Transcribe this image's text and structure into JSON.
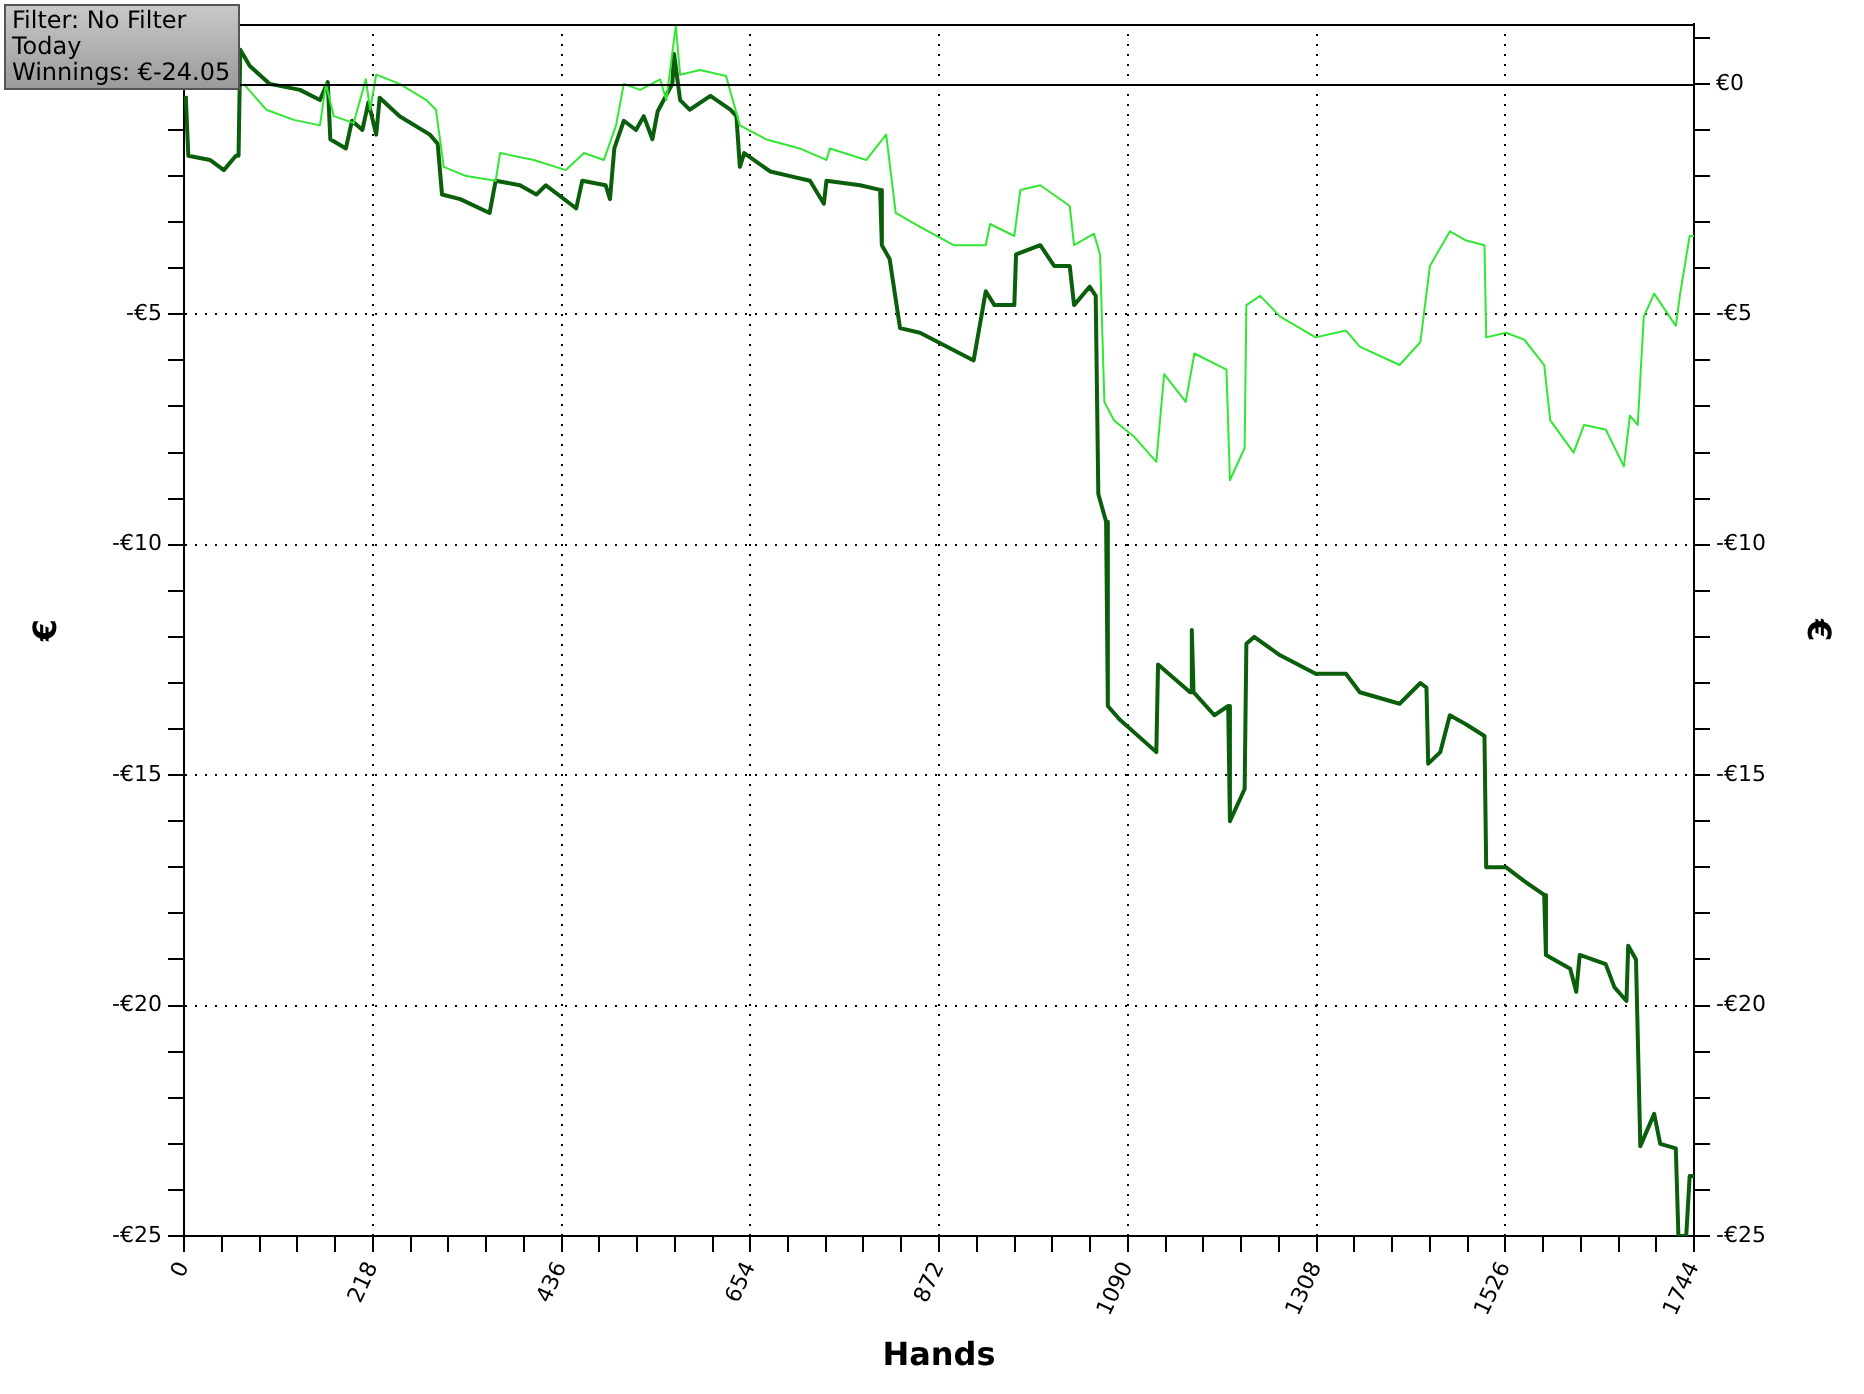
{
  "chart_data": {
    "type": "line",
    "xlabel": "Hands",
    "ylabel": "€",
    "y2label": "€",
    "annotations": [
      "Filter: No Filter",
      "Today",
      "Winnings: €-24.05"
    ],
    "xlim": [
      0,
      1744
    ],
    "xticks": [
      0,
      {
        "value": 43.6,
        "label": null
      },
      {
        "value": 87.2,
        "label": null
      },
      {
        "value": 130.8,
        "label": null
      },
      {
        "value": 174.4,
        "label": null
      },
      218,
      {
        "value": 261.6,
        "label": null
      },
      {
        "value": 305.2,
        "label": null
      },
      {
        "value": 348.8,
        "label": null
      },
      {
        "value": 392.4,
        "label": null
      },
      436,
      {
        "value": 479.6,
        "label": null
      },
      {
        "value": 523.2,
        "label": null
      },
      {
        "value": 566.8,
        "label": null
      },
      {
        "value": 610.4,
        "label": null
      },
      654,
      {
        "value": 697.6,
        "label": null
      },
      {
        "value": 741.2,
        "label": null
      },
      {
        "value": 784.8,
        "label": null
      },
      {
        "value": 828.4,
        "label": null
      },
      872,
      {
        "value": 915.6,
        "label": null
      },
      {
        "value": 959.2,
        "label": null
      },
      {
        "value": 1002.8,
        "label": null
      },
      {
        "value": 1046.4,
        "label": null
      },
      1090,
      {
        "value": 1133.6,
        "label": null
      },
      {
        "value": 1177.2,
        "label": null
      },
      {
        "value": 1220.8,
        "label": null
      },
      {
        "value": 1264.4,
        "label": null
      },
      1308,
      {
        "value": 1351.6,
        "label": null
      },
      {
        "value": 1395.2,
        "label": null
      },
      {
        "value": 1438.8,
        "label": null
      },
      {
        "value": 1482.4,
        "label": null
      },
      1526,
      {
        "value": 1569.6,
        "label": null
      },
      {
        "value": 1613.2,
        "label": null
      },
      {
        "value": 1656.8,
        "label": null
      },
      {
        "value": 1700.4,
        "label": null
      },
      1744
    ],
    "ylim": [
      -25,
      1.3
    ],
    "yticks": [
      {
        "value": -25,
        "label": "-€25"
      },
      {
        "value": -24,
        "label": null
      },
      {
        "value": -23,
        "label": null
      },
      {
        "value": -22,
        "label": null
      },
      {
        "value": -21,
        "label": null
      },
      {
        "value": -20,
        "label": "-€20"
      },
      {
        "value": -19,
        "label": null
      },
      {
        "value": -18,
        "label": null
      },
      {
        "value": -17,
        "label": null
      },
      {
        "value": -16,
        "label": null
      },
      {
        "value": -15,
        "label": "-€15"
      },
      {
        "value": -14,
        "label": null
      },
      {
        "value": -13,
        "label": null
      },
      {
        "value": -12,
        "label": null
      },
      {
        "value": -11,
        "label": null
      },
      {
        "value": -10,
        "label": "-€10"
      },
      {
        "value": -9,
        "label": null
      },
      {
        "value": -8,
        "label": null
      },
      {
        "value": -7,
        "label": null
      },
      {
        "value": -6,
        "label": null
      },
      {
        "value": -5,
        "label": "-€5"
      },
      {
        "value": -4,
        "label": null
      },
      {
        "value": -3,
        "label": null
      },
      {
        "value": -2,
        "label": null
      },
      {
        "value": -1,
        "label": null
      },
      {
        "value": 0,
        "label": null
      },
      {
        "value": 1,
        "label": null
      }
    ],
    "y2lim": [
      -25,
      1.3
    ],
    "y2ticks": [
      {
        "value": -25,
        "label": "-€25"
      },
      {
        "value": -24,
        "label": null
      },
      {
        "value": -23,
        "label": null
      },
      {
        "value": -22,
        "label": null
      },
      {
        "value": -21,
        "label": null
      },
      {
        "value": -20,
        "label": "-€20"
      },
      {
        "value": -19,
        "label": null
      },
      {
        "value": -18,
        "label": null
      },
      {
        "value": -17,
        "label": null
      },
      {
        "value": -16,
        "label": null
      },
      {
        "value": -15,
        "label": "-€15"
      },
      {
        "value": -14,
        "label": null
      },
      {
        "value": -13,
        "label": null
      },
      {
        "value": -12,
        "label": null
      },
      {
        "value": -11,
        "label": null
      },
      {
        "value": -10,
        "label": "-€10"
      },
      {
        "value": -9,
        "label": null
      },
      {
        "value": -8,
        "label": null
      },
      {
        "value": -7,
        "label": null
      },
      {
        "value": -6,
        "label": null
      },
      {
        "value": -5,
        "label": "-€5"
      },
      {
        "value": -4,
        "label": null
      },
      {
        "value": -3,
        "label": null
      },
      {
        "value": -2,
        "label": null
      },
      {
        "value": -1,
        "label": null
      },
      {
        "value": 0,
        "label": "€0"
      },
      {
        "value": 1,
        "label": null
      }
    ],
    "grid": true,
    "legend": false,
    "marker": "none",
    "line_style": "solid",
    "ref_lines": [
      {
        "axis": "y",
        "value": 0,
        "color": "#000000"
      }
    ],
    "series": [
      {
        "color": "#33e633",
        "x": [
          69,
          95,
          127,
          157,
          164,
          173,
          196,
          210,
          215,
          222,
          249,
          280,
          291,
          300,
          326,
          360,
          365,
          404,
          441,
          462,
          485,
          499,
          508,
          527,
          550,
          557,
          568,
          573,
          596,
          626,
          642,
          672,
          711,
          742,
          746,
          788,
          811,
          822,
          850,
          889,
          926,
          931,
          959,
          966,
          989,
          1023,
          1028,
          1051,
          1058,
          1063,
          1074,
          1097,
          1123,
          1132,
          1157,
          1167,
          1204,
          1208,
          1225,
          1227,
          1243,
          1266,
          1307,
          1342,
          1358,
          1404,
          1428,
          1439,
          1462,
          1481,
          1502,
          1504,
          1527,
          1548,
          1571,
          1578,
          1605,
          1617,
          1642,
          1663,
          1670,
          1679,
          1686,
          1698,
          1723,
          1728,
          1739,
          1744
        ],
        "values": [
          0,
          -0.56,
          -0.78,
          -0.9,
          0,
          -0.7,
          -0.85,
          0.1,
          -0.56,
          0.2,
          0,
          -0.35,
          -0.56,
          -1.8,
          -2.0,
          -2.1,
          -1.5,
          -1.65,
          -1.87,
          -1.5,
          -1.65,
          -0.9,
          0,
          -0.13,
          0.1,
          -0.35,
          1.26,
          0.2,
          0.3,
          0.17,
          -0.9,
          -1.2,
          -1.4,
          -1.65,
          -1.4,
          -1.65,
          -1.1,
          -2.8,
          -3.1,
          -3.5,
          -3.5,
          -3.04,
          -3.3,
          -2.3,
          -2.2,
          -2.65,
          -3.5,
          -3.25,
          -3.7,
          -6.9,
          -7.3,
          -7.65,
          -8.2,
          -6.3,
          -6.9,
          -5.85,
          -6.2,
          -8.6,
          -7.9,
          -4.8,
          -4.6,
          -5.05,
          -5.5,
          -5.35,
          -5.7,
          -6.1,
          -5.6,
          -3.95,
          -3.2,
          -3.4,
          -3.5,
          -5.5,
          -5.4,
          -5.55,
          -6.1,
          -7.3,
          -8.0,
          -7.4,
          -7.5,
          -8.3,
          -7.2,
          -7.4,
          -5.05,
          -4.55,
          -5.25,
          -4.55,
          -3.3,
          -3.3
        ]
      },
      {
        "color": "#0b5e0b",
        "x": [
          2,
          5,
          30,
          46,
          60,
          63,
          65,
          76,
          99,
          134,
          157,
          166,
          169,
          187,
          194,
          206,
          213,
          222,
          226,
          249,
          284,
          293,
          298,
          319,
          353,
          360,
          388,
          407,
          418,
          446,
          453,
          460,
          487,
          492,
          497,
          508,
          522,
          531,
          541,
          547,
          564,
          566,
          573,
          584,
          608,
          631,
          638,
          642,
          647,
          677,
          700,
          723,
          739,
          742,
          781,
          804,
          806,
          815,
          827,
          850,
          912,
          926,
          936,
          959,
          961,
          989,
          1005,
          1023,
          1028,
          1046,
          1053,
          1056,
          1065,
          1067,
          1081,
          1123,
          1125,
          1162,
          1164,
          1166,
          1190,
          1206,
          1208,
          1225,
          1227,
          1236,
          1266,
          1307,
          1342,
          1358,
          1404,
          1428,
          1435,
          1437,
          1451,
          1462,
          1481,
          1502,
          1504,
          1527,
          1548,
          1571,
          1573,
          1601,
          1608,
          1612,
          1642,
          1652,
          1666,
          1668,
          1677,
          1682,
          1698,
          1705,
          1723,
          1726,
          1735,
          1739,
          1744
        ],
        "values": [
          -0.26,
          -1.56,
          -1.65,
          -1.87,
          -1.56,
          -1.56,
          0.74,
          0.39,
          0,
          -0.13,
          -0.35,
          0.04,
          -1.2,
          -1.4,
          -0.8,
          -1.0,
          -0.4,
          -1.1,
          -0.3,
          -0.7,
          -1.1,
          -1.3,
          -2.4,
          -2.5,
          -2.8,
          -2.1,
          -2.2,
          -2.4,
          -2.2,
          -2.6,
          -2.7,
          -2.1,
          -2.2,
          -2.5,
          -1.4,
          -0.8,
          -1.0,
          -0.7,
          -1.2,
          -0.6,
          0,
          0.65,
          -0.35,
          -0.56,
          -0.26,
          -0.56,
          -0.7,
          -1.8,
          -1.5,
          -1.9,
          -2.0,
          -2.1,
          -2.6,
          -2.1,
          -2.2,
          -2.3,
          -3.5,
          -3.8,
          -5.3,
          -5.4,
          -6.0,
          -4.5,
          -4.8,
          -4.8,
          -3.7,
          -3.5,
          -3.95,
          -3.95,
          -4.8,
          -4.4,
          -4.6,
          -8.9,
          -9.5,
          -13.5,
          -13.8,
          -14.5,
          -12.6,
          -13.2,
          -11.85,
          -13.2,
          -13.7,
          -13.5,
          -16.0,
          -15.3,
          -12.15,
          -12.0,
          -12.4,
          -12.8,
          -12.8,
          -13.2,
          -13.45,
          -13.0,
          -13.1,
          -14.75,
          -14.5,
          -13.7,
          -13.9,
          -14.15,
          -17.0,
          -17.0,
          -17.3,
          -17.6,
          -18.9,
          -19.2,
          -19.7,
          -18.9,
          -19.1,
          -19.6,
          -19.9,
          -18.7,
          -19.0,
          -23.05,
          -22.35,
          -23.0,
          -23.1,
          -25.0,
          -25.0,
          -23.7,
          -23.7
        ]
      }
    ]
  }
}
